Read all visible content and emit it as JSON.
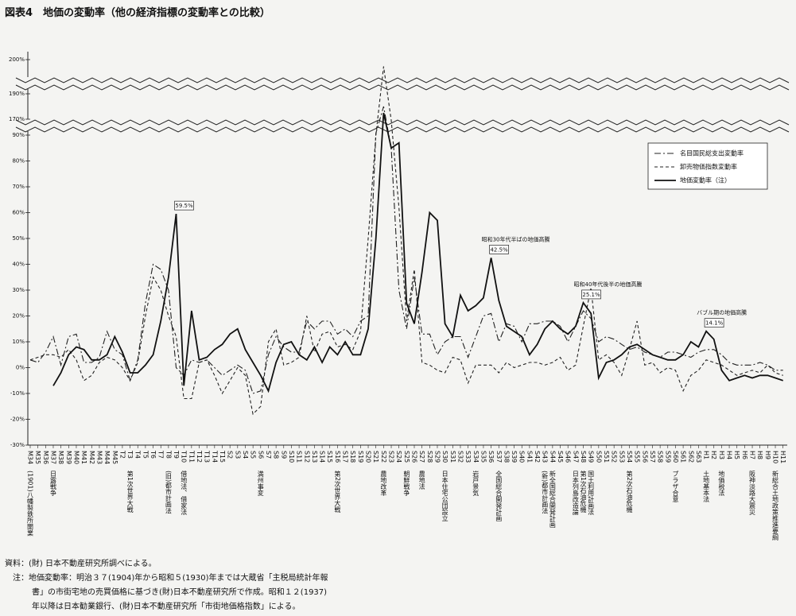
{
  "chart_data": {
    "type": "line",
    "title": "図表4　地価の変動率（他の経済指標の変動率との比較）",
    "categories": [
      "M34",
      "M35",
      "M36",
      "M37",
      "M38",
      "M39",
      "M40",
      "M41",
      "M42",
      "M43",
      "M44",
      "M45",
      "T2",
      "T3",
      "T4",
      "T5",
      "T6",
      "T7",
      "T8",
      "T9",
      "T10",
      "T11",
      "T12",
      "T13",
      "T14",
      "T15",
      "S2",
      "S3",
      "S4",
      "S5",
      "S6",
      "S7",
      "S8",
      "S9",
      "S10",
      "S11",
      "S12",
      "S13",
      "S14",
      "S15",
      "S16",
      "S17",
      "S18",
      "S19",
      "S20",
      "S21",
      "S22",
      "S23",
      "S24",
      "S25",
      "S26",
      "S27",
      "S28",
      "S29",
      "S30",
      "S31",
      "S32",
      "S33",
      "S34",
      "S35",
      "S36",
      "S37",
      "S38",
      "S39",
      "S40",
      "S41",
      "S42",
      "S43",
      "S44",
      "S45",
      "S46",
      "S47",
      "S48",
      "S49",
      "S50",
      "S51",
      "S52",
      "S53",
      "S54",
      "S55",
      "S56",
      "S57",
      "S58",
      "S59",
      "S60",
      "S61",
      "S62",
      "S63",
      "H1",
      "H2",
      "H3",
      "H4",
      "H5",
      "H6",
      "H7",
      "H8",
      "H9",
      "H10",
      "H11"
    ],
    "events": [
      "(1901)八幡製鉄所開業",
      null,
      null,
      "日露戦争",
      null,
      null,
      null,
      null,
      null,
      null,
      null,
      null,
      null,
      "第1次世界大戦",
      null,
      null,
      null,
      null,
      "(旧)都市計画法",
      null,
      "借地法、借家法",
      null,
      null,
      null,
      null,
      null,
      null,
      null,
      null,
      null,
      "満州事変",
      null,
      null,
      null,
      null,
      null,
      null,
      null,
      null,
      null,
      "第2次世界大戦",
      null,
      null,
      null,
      null,
      null,
      "農地改革",
      null,
      null,
      "朝鮮戦争",
      null,
      "農地法",
      null,
      null,
      "日本住宅公団設立",
      null,
      null,
      null,
      "岩戸景気",
      null,
      null,
      "全国総合開発計画",
      null,
      null,
      null,
      null,
      null,
      "(新)都市計画法",
      "新全国総合開発計画",
      null,
      null,
      "日本列島改造論",
      "第1次石油危機",
      "国土利用計画法",
      null,
      null,
      null,
      null,
      "第2次石油危機",
      null,
      null,
      null,
      null,
      null,
      "プラザ合意",
      null,
      null,
      null,
      "土地基本法",
      null,
      "地価税法",
      null,
      null,
      null,
      "阪神淡路大震災",
      null,
      null,
      "新総合土地政策推進要綱",
      null
    ],
    "series": [
      {
        "name": "名目国民総支出変動率",
        "color": "#222222",
        "dash": "dashdot",
        "values": [
          3,
          2,
          6,
          12,
          1,
          12,
          13,
          2,
          2,
          4,
          14,
          7,
          5,
          -5,
          3,
          25,
          40,
          38,
          30,
          0,
          -3,
          3,
          2,
          3,
          0,
          -3,
          -1,
          1,
          -1,
          -10,
          -9,
          5,
          12,
          8,
          6,
          6,
          18,
          15,
          18,
          18,
          13,
          15,
          12,
          18,
          20,
          100,
          180,
          85,
          30,
          15,
          35,
          13,
          13,
          5,
          10,
          12,
          12,
          4,
          12,
          20,
          21,
          10,
          17,
          16,
          10,
          17,
          17,
          18,
          18,
          16,
          10,
          16,
          22,
          19,
          10,
          12,
          11,
          9,
          7,
          8,
          6,
          5,
          4,
          6,
          6,
          5,
          4,
          6,
          7,
          7,
          5,
          2,
          1,
          1,
          1,
          2,
          1,
          -1,
          -1
        ]
      },
      {
        "name": "卸売物価指数変動率",
        "color": "#222222",
        "dash": "dash",
        "values": [
          3,
          4,
          5,
          5,
          4,
          7,
          3,
          -5,
          -3,
          2,
          4,
          3,
          0,
          -5,
          2,
          20,
          35,
          30,
          20,
          12,
          -12,
          -12,
          2,
          3,
          -3,
          -10,
          -5,
          0,
          -3,
          -18,
          -15,
          10,
          15,
          1,
          2,
          4,
          20,
          6,
          13,
          14,
          8,
          9,
          7,
          14,
          50,
          90,
          198,
          165,
          62,
          18,
          38,
          2,
          1,
          -1,
          -2,
          4,
          3,
          -6,
          1,
          1,
          1,
          -2,
          2,
          0,
          1,
          2,
          2,
          1,
          2,
          4,
          -1,
          1,
          16,
          31,
          3,
          5,
          2,
          -3,
          7,
          18,
          1,
          2,
          -2,
          0,
          -1,
          -9,
          -3,
          -1,
          3,
          2,
          1,
          -1,
          -3,
          -2,
          -1,
          -2,
          1,
          -2,
          -3
        ]
      },
      {
        "name": "地価変動率（注）",
        "color": "#111111",
        "dash": "solid",
        "values": [
          null,
          null,
          null,
          -7,
          -2,
          5,
          8,
          7,
          3,
          3,
          5,
          12,
          6,
          -2,
          -2,
          1,
          5,
          18,
          35,
          59.5,
          -7,
          22,
          3,
          4,
          7,
          9,
          13,
          15,
          7,
          2,
          -3,
          -9,
          2,
          9,
          10,
          5,
          3,
          8,
          2,
          8,
          5,
          10,
          5,
          5,
          15,
          50,
          175,
          85,
          87,
          25,
          17,
          37,
          60,
          57,
          17,
          12,
          28,
          22,
          24,
          27,
          42.5,
          26,
          16,
          14,
          12,
          5,
          9,
          15,
          18,
          15,
          13,
          16,
          25.1,
          21,
          -4,
          2,
          3,
          5,
          8,
          9,
          7,
          5,
          4,
          3,
          3,
          5,
          10,
          8,
          14.1,
          11,
          -1,
          -5,
          -4,
          -3,
          -4,
          -3,
          -3,
          -4,
          -5
        ],
        "value_labels": [
          null,
          null,
          null,
          null,
          null,
          null,
          null,
          null,
          null,
          null,
          null,
          null,
          null,
          null,
          null,
          null,
          null,
          null,
          null,
          "59.5%",
          null,
          null,
          null,
          null,
          null,
          null,
          null,
          null,
          null,
          null,
          null,
          null,
          null,
          null,
          null,
          null,
          null,
          null,
          null,
          null,
          null,
          null,
          null,
          null,
          null,
          null,
          null,
          null,
          null,
          null,
          null,
          null,
          null,
          null,
          null,
          null,
          null,
          null,
          null,
          null,
          "42.5%",
          null,
          null,
          null,
          null,
          null,
          null,
          null,
          null,
          null,
          null,
          null,
          "25.1%",
          null,
          null,
          null,
          null,
          null,
          null,
          null,
          null,
          null,
          null,
          null,
          null,
          null,
          null,
          null,
          "14.1%",
          null,
          null,
          null,
          null,
          null,
          null,
          null,
          null,
          null,
          null
        ]
      }
    ],
    "annotations": [
      {
        "category": "S36",
        "text": "昭和30年代半ばの地価高騰"
      },
      {
        "category": "S48",
        "text": "昭和40年代後半の地価高騰"
      },
      {
        "category": "H1",
        "text": "バブル期の地価高騰"
      }
    ],
    "ylim": [
      -30,
      200
    ],
    "yticks": [
      {
        "value": -30,
        "label": "-30%"
      },
      {
        "value": -20,
        "label": "-20%"
      },
      {
        "value": -10,
        "label": "-10%"
      },
      {
        "value": 0,
        "label": "0%"
      },
      {
        "value": 10,
        "label": "10%"
      },
      {
        "value": 20,
        "label": "20%"
      },
      {
        "value": 30,
        "label": "30%"
      },
      {
        "value": 40,
        "label": "40%"
      },
      {
        "value": 50,
        "label": "50%"
      },
      {
        "value": 60,
        "label": "60%"
      },
      {
        "value": 70,
        "label": "70%"
      },
      {
        "value": 80,
        "label": "80%"
      },
      {
        "value": 90,
        "label": "90%"
      },
      {
        "value": 170,
        "label": "170%"
      },
      {
        "value": 190,
        "label": "190%"
      },
      {
        "value": 200,
        "label": "200%"
      }
    ],
    "grid": false,
    "legend": "upper right",
    "notes": [
      "資料：(財) 日本不動産研究所調べによる。",
      "注：地価変動率：明治３７(1904)年から昭和５(1930)年までは大蔵省「主税局統計年報",
      "書」の市街宅地の売買価格に基づき(財)日本不動産研究所で作成。昭和１２(1937)",
      "年以降は日本勧業銀行、(財)日本不動産研究所「市街地価格指数」による。"
    ]
  }
}
